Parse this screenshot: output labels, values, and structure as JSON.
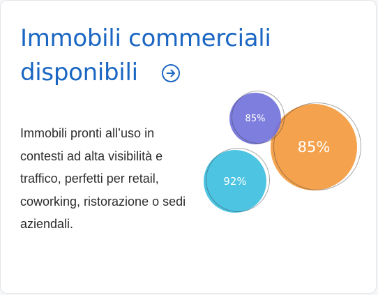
{
  "card": {
    "title_line1": "Immobili commerciali",
    "title_line2": "disponibili",
    "description": "Immobili pronti all’uso in contesti ad alta visibilità e traffico, perfetti per retail, coworking, ristorazione o sedi aziendali.",
    "link_icon": "arrow-right-circle-icon"
  },
  "bubbles": [
    {
      "label": "85%",
      "color": "#7373dc"
    },
    {
      "label": "85%",
      "color": "#f4a24d"
    },
    {
      "label": "92%",
      "color": "#4cc4e2"
    }
  ],
  "colors": {
    "accent": "#1a66c2",
    "text": "#2d2d2d",
    "background": "#ffffff"
  }
}
